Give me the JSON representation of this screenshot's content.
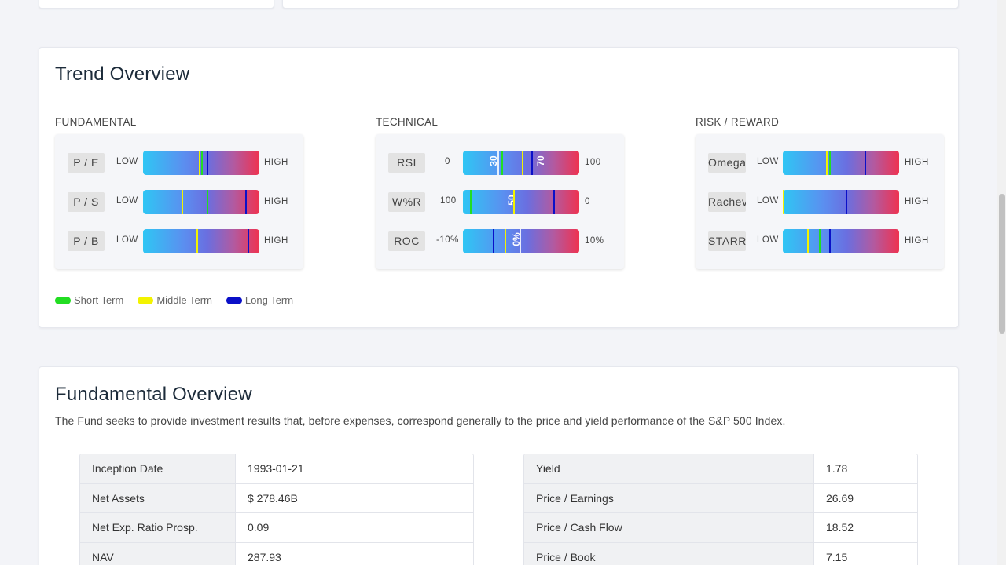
{
  "trend": {
    "title": "Trend Overview",
    "sections": {
      "fundamental": {
        "label": "FUNDAMENTAL",
        "rows": [
          {
            "name": "P / E",
            "low": "LOW",
            "high": "HIGH",
            "short": 0.5,
            "mid": 0.48,
            "long": 0.55
          },
          {
            "name": "P / S",
            "low": "LOW",
            "high": "HIGH",
            "short": 0.55,
            "mid": 0.33,
            "long": 0.88
          },
          {
            "name": "P / B",
            "low": "LOW",
            "high": "HIGH",
            "short": null,
            "mid": 0.46,
            "long": 0.9
          }
        ]
      },
      "technical": {
        "label": "TECHNICAL",
        "rows": [
          {
            "name": "RSI",
            "low": "0",
            "high": "100",
            "short": 0.33,
            "mid": 0.51,
            "long": 0.59,
            "zones": [
              "30",
              "70"
            ],
            "zone_pos": [
              0.3,
              0.7
            ]
          },
          {
            "name": "W%R",
            "low": "100",
            "high": "0",
            "short": 0.06,
            "mid": 0.43,
            "long": 0.78,
            "zones": [
              "50"
            ],
            "zone_pos": [
              0.45
            ]
          },
          {
            "name": "ROC",
            "low": "-10%",
            "high": "10%",
            "short": null,
            "mid": 0.36,
            "long": 0.26,
            "zones": [
              "0%"
            ],
            "zone_pos": [
              0.49
            ]
          }
        ]
      },
      "risk": {
        "label": "RISK / REWARD",
        "rows": [
          {
            "name": "Omega",
            "low": "LOW",
            "high": "HIGH",
            "short": 0.4,
            "mid": 0.37,
            "long": 0.7
          },
          {
            "name": "Rachev",
            "low": "LOW",
            "high": "HIGH",
            "short": null,
            "mid": 0.0,
            "long": 0.54
          },
          {
            "name": "STARR",
            "low": "LOW",
            "high": "HIGH",
            "short": 0.31,
            "mid": 0.21,
            "long": 0.4
          }
        ]
      }
    },
    "legend": {
      "short": "Short Term",
      "mid": "Middle Term",
      "long": "Long Term"
    },
    "colors": {
      "short": "#22dd22",
      "mid": "#f3f300",
      "long": "#0a10c8"
    }
  },
  "fundamental": {
    "title": "Fundamental Overview",
    "description": "The Fund seeks to provide investment results that, before expenses, correspond generally to the price and yield performance of the S&P 500 Index.",
    "left_table": [
      {
        "key": "Inception Date",
        "value": "1993-01-21"
      },
      {
        "key": "Net Assets",
        "value": "$ 278.46B"
      },
      {
        "key": "Net Exp. Ratio Prosp.",
        "value": "0.09"
      },
      {
        "key": "NAV",
        "value": "287.93"
      }
    ],
    "right_table": [
      {
        "key": "Yield",
        "value": "1.78"
      },
      {
        "key": "Price / Earnings",
        "value": "26.69"
      },
      {
        "key": "Price / Cash Flow",
        "value": "18.52"
      },
      {
        "key": "Price / Book",
        "value": "7.15"
      }
    ]
  }
}
